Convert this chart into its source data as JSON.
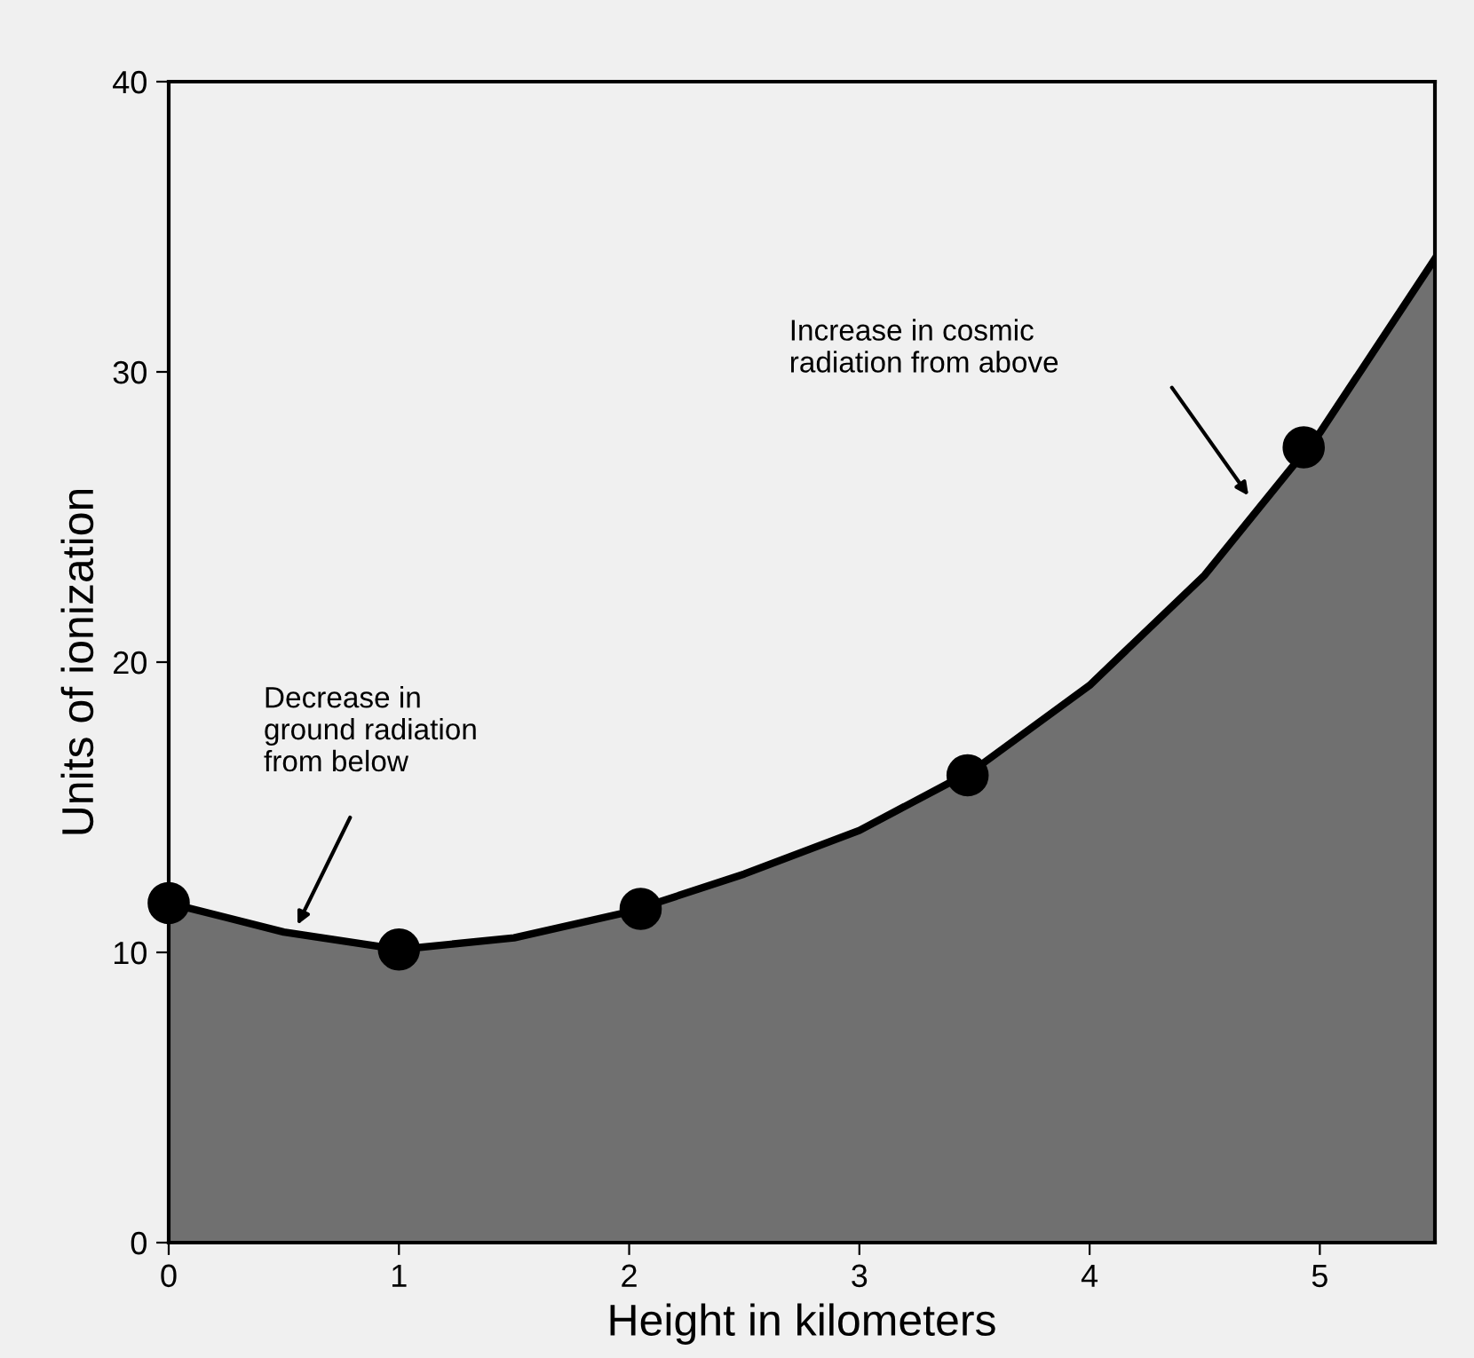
{
  "chart_data": {
    "type": "area",
    "xlabel": "Height in kilometers",
    "ylabel": "Units of ionization",
    "xlim": [
      0,
      5.5
    ],
    "ylim": [
      0,
      40
    ],
    "xticks": [
      0,
      1,
      2,
      3,
      4,
      5
    ],
    "yticks": [
      0,
      10,
      20,
      30,
      40
    ],
    "grid": false,
    "series": [
      {
        "color": "#707070",
        "x": [
          0,
          0.5,
          1,
          1.5,
          2,
          2.5,
          3,
          3.5,
          4,
          4.5,
          5,
          5.5
        ],
        "values": [
          11.7,
          10.7,
          10.1,
          10.5,
          11.4,
          12.7,
          14.2,
          16.3,
          19.2,
          23,
          27.9,
          33.9
        ]
      },
      {
        "type": "scatter",
        "color": "#000000",
        "marker": "circle",
        "x": [
          0,
          1,
          2.05,
          3.47,
          4.93
        ],
        "values": [
          11.7,
          10.1,
          11.5,
          16.1,
          27.4
        ]
      }
    ],
    "annotations": [
      "Decrease in\nground radiation\nfrom below",
      "Increase in cosmic\nradiation from above"
    ]
  }
}
